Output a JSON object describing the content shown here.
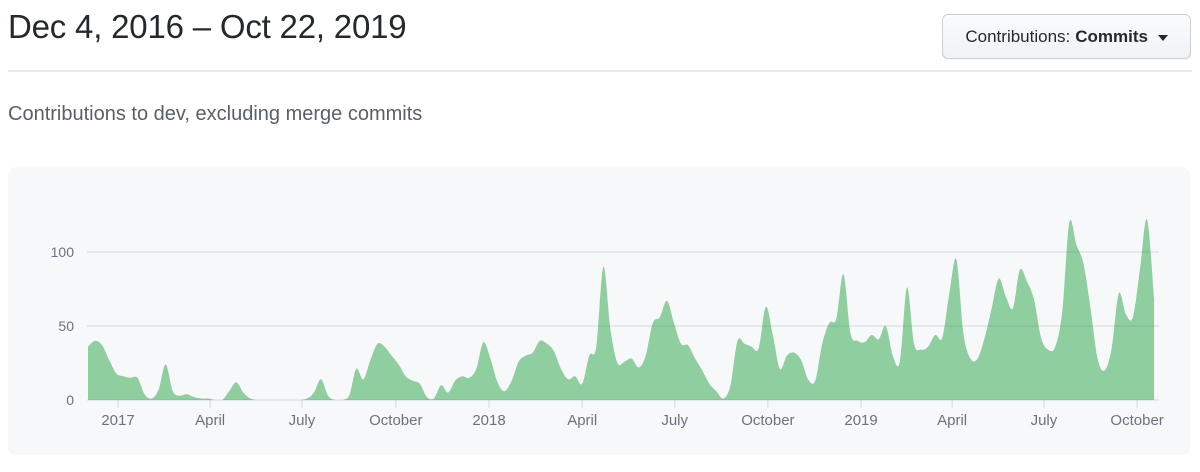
{
  "header": {
    "title": "Dec 4, 2016 – Oct 22, 2019",
    "filter_button": {
      "prefix": "Contributions:",
      "selected": "Commits",
      "caret_icon": "caret-down"
    }
  },
  "subtitle": "Contributions to dev, excluding merge commits",
  "colors": {
    "area_fill": "#8fcf9f",
    "card_background": "#f6f8fa",
    "axis_label": "#6a737d",
    "gridline": "rgba(27,31,35,0.09)",
    "title_text": "#24292e",
    "subtitle_text": "#586069"
  },
  "chart_data": {
    "type": "area",
    "title": "Contributions to dev, excluding merge commits",
    "series_name": "commits-per-week",
    "x_start_label": "Dec 4, 2016",
    "x_end_label": "Oct 22, 2019",
    "x_unit": "week",
    "ylim": [
      0,
      130
    ],
    "grid": true,
    "legend": "none",
    "fill_color": "#8fcf9f",
    "y_ticks": [
      0,
      50,
      100
    ],
    "x_ticks": [
      {
        "label": "2017",
        "week": 4.25
      },
      {
        "label": "April",
        "week": 17.3
      },
      {
        "label": "July",
        "week": 30.3
      },
      {
        "label": "October",
        "week": 43.6
      },
      {
        "label": "2018",
        "week": 56.8
      },
      {
        "label": "April",
        "week": 70.0
      },
      {
        "label": "July",
        "week": 83.1
      },
      {
        "label": "October",
        "week": 96.3
      },
      {
        "label": "2019",
        "week": 109.5
      },
      {
        "label": "April",
        "week": 122.4
      },
      {
        "label": "July",
        "week": 135.4
      },
      {
        "label": "October",
        "week": 148.6
      }
    ],
    "values": [
      36,
      40,
      37,
      27,
      18,
      16,
      15,
      15,
      4,
      1,
      7,
      24,
      6,
      3,
      4,
      2,
      1,
      1,
      0,
      0,
      6,
      12,
      5,
      1,
      0,
      0,
      0,
      0,
      0,
      0,
      0,
      1,
      5,
      14,
      3,
      0,
      0,
      3,
      21,
      14,
      27,
      38,
      36,
      30,
      24,
      16,
      13,
      11,
      2,
      1,
      10,
      5,
      13,
      16,
      15,
      21,
      39,
      28,
      12,
      6,
      13,
      26,
      30,
      32,
      40,
      38,
      33,
      21,
      14,
      16,
      11,
      30,
      36,
      90,
      48,
      25,
      26,
      28,
      22,
      30,
      52,
      56,
      67,
      52,
      38,
      37,
      28,
      20,
      11,
      6,
      1,
      10,
      40,
      38,
      36,
      35,
      63,
      44,
      21,
      30,
      32,
      27,
      14,
      13,
      38,
      52,
      55,
      85,
      45,
      40,
      39,
      44,
      41,
      50,
      30,
      26,
      76,
      38,
      34,
      36,
      44,
      42,
      72,
      95,
      45,
      28,
      28,
      42,
      62,
      82,
      70,
      62,
      88,
      80,
      68,
      42,
      34,
      36,
      60,
      120,
      105,
      92,
      62,
      28,
      20,
      35,
      72,
      58,
      56,
      88,
      122,
      68
    ]
  }
}
